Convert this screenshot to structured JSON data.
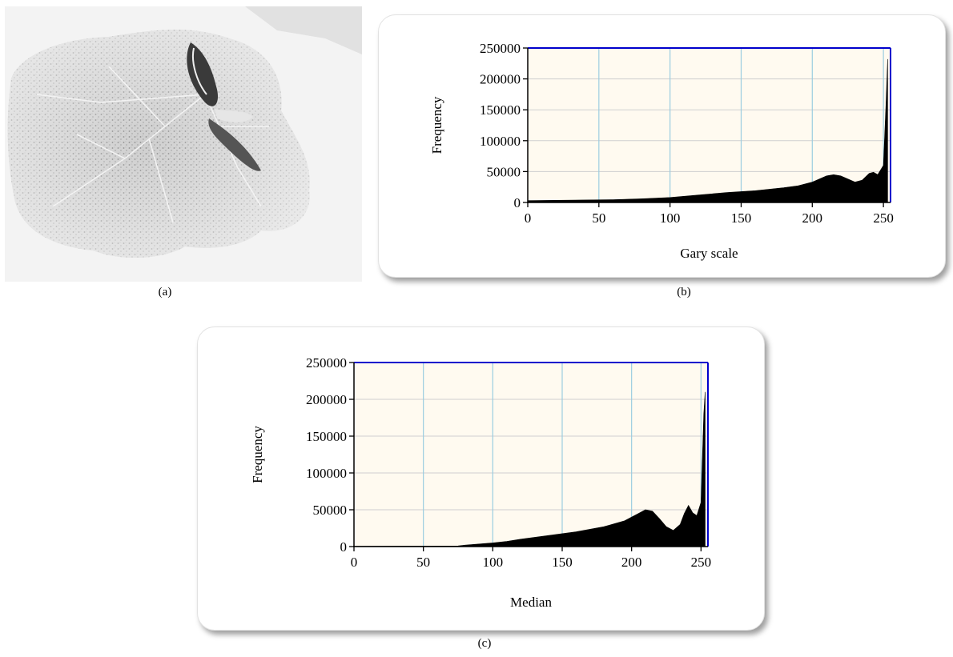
{
  "captions": {
    "a": "(a)",
    "b": "(b)",
    "c": "(c)"
  },
  "chart_data": [
    {
      "type": "area",
      "title": "",
      "xlabel": "Gary scale",
      "ylabel": "Frequency",
      "xlim": [
        0,
        255
      ],
      "ylim": [
        0,
        250000
      ],
      "xticks": [
        0,
        50,
        100,
        150,
        200,
        250
      ],
      "yticks": [
        0,
        50000,
        100000,
        150000,
        200000,
        250000
      ],
      "x": [
        0,
        20,
        40,
        60,
        80,
        100,
        120,
        140,
        160,
        180,
        190,
        200,
        205,
        210,
        215,
        220,
        225,
        230,
        235,
        240,
        243,
        246,
        250,
        252,
        253
      ],
      "values": [
        3000,
        3500,
        4000,
        4500,
        6000,
        8000,
        12000,
        16000,
        19000,
        24000,
        27000,
        33000,
        38000,
        43000,
        45000,
        43000,
        38000,
        33000,
        36000,
        47000,
        49000,
        45000,
        60000,
        170000,
        232000
      ],
      "grid": true,
      "fill_color": "#000000",
      "plot_background": "#fffaf0",
      "vertical_grid_color": "#9ccde0",
      "frame_color": "#0000cc"
    },
    {
      "type": "area",
      "title": "",
      "xlabel": "Median",
      "ylabel": "Frequency",
      "xlim": [
        0,
        255
      ],
      "ylim": [
        0,
        250000
      ],
      "xticks": [
        0,
        50,
        100,
        150,
        200,
        250
      ],
      "yticks": [
        0,
        50000,
        100000,
        150000,
        200000,
        250000
      ],
      "x": [
        0,
        50,
        75,
        80,
        90,
        100,
        110,
        120,
        140,
        160,
        180,
        195,
        200,
        205,
        210,
        215,
        220,
        225,
        230,
        235,
        238,
        241,
        244,
        247,
        250,
        252,
        253
      ],
      "values": [
        500,
        600,
        900,
        2000,
        3500,
        5000,
        7000,
        10000,
        15000,
        20000,
        27000,
        35000,
        40000,
        45000,
        50000,
        48000,
        38000,
        27000,
        22000,
        30000,
        45000,
        56000,
        46000,
        42000,
        60000,
        180000,
        210000
      ],
      "grid": true,
      "fill_color": "#000000",
      "plot_background": "#fffaf0",
      "vertical_grid_color": "#9ccde0",
      "frame_color": "#0000cc"
    }
  ]
}
